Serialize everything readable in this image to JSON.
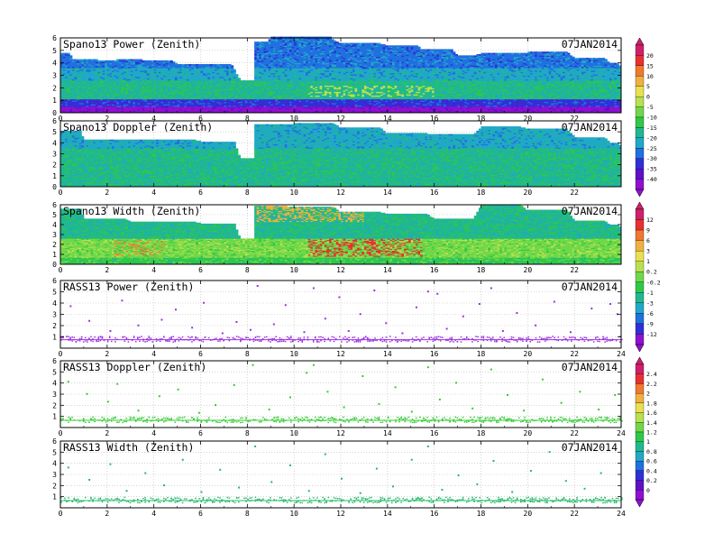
{
  "chart_data": [
    {
      "type": "heatmap",
      "title": "Spano13 Power (Zenith)",
      "date": "07JAN2014",
      "xlim": [
        0,
        24
      ],
      "ylim": [
        0,
        6
      ],
      "x_ticks": [
        "0",
        "2",
        "4",
        "6",
        "8",
        "10",
        "12",
        "14",
        "16",
        "18",
        "20",
        "22"
      ],
      "y_ticks": [
        "0",
        "1",
        "2",
        "3",
        "4",
        "5",
        "6"
      ],
      "grid": true,
      "colorbar": "A",
      "top_profile": [
        [
          0,
          4.7
        ],
        [
          0.5,
          4.3
        ],
        [
          1.6,
          4.2
        ],
        [
          2.5,
          4.3
        ],
        [
          3.5,
          4.2
        ],
        [
          5,
          3.9
        ],
        [
          7.7,
          2.6
        ],
        [
          8.1,
          2.6
        ],
        [
          8.3,
          5.6
        ],
        [
          9,
          6.0
        ],
        [
          12,
          5.5
        ],
        [
          14,
          5.3
        ],
        [
          15.5,
          5.0
        ],
        [
          17,
          4.6
        ],
        [
          18,
          4.7
        ],
        [
          20,
          4.8
        ],
        [
          22,
          4.4
        ],
        [
          23.5,
          4.0
        ],
        [
          24,
          3.2
        ]
      ],
      "layers": [
        {
          "y0": 0.0,
          "y1": 0.5,
          "level": 0
        },
        {
          "y0": 0.5,
          "y1": 1.0,
          "level": 2
        },
        {
          "y0": 1.0,
          "y1": 2.6,
          "level": 5
        },
        {
          "y0": 2.6,
          "y1": 3.6,
          "level": 4
        },
        {
          "y0": 3.6,
          "y1": 6.0,
          "level": 3
        }
      ]
    },
    {
      "type": "heatmap",
      "title": "Spano13 Doppler (Zenith)",
      "date": "07JAN2014",
      "xlim": [
        0,
        24
      ],
      "ylim": [
        0,
        6
      ],
      "x_ticks": [
        "0",
        "2",
        "4",
        "6",
        "8",
        "10",
        "12",
        "14",
        "16",
        "18",
        "20",
        "22"
      ],
      "y_ticks": [
        "0",
        "1",
        "2",
        "3",
        "4",
        "5",
        "6"
      ],
      "grid": true,
      "colorbar": "A",
      "top_profile": [
        [
          0,
          5.0
        ],
        [
          1,
          4.3
        ],
        [
          3,
          4.3
        ],
        [
          6,
          4.1
        ],
        [
          7.7,
          2.6
        ],
        [
          8.1,
          2.6
        ],
        [
          8.3,
          5.6
        ],
        [
          10,
          5.7
        ],
        [
          12,
          5.3
        ],
        [
          14,
          4.8
        ],
        [
          16,
          4.7
        ],
        [
          18,
          5.4
        ],
        [
          20,
          5.2
        ],
        [
          22,
          4.5
        ],
        [
          23.5,
          4.0
        ],
        [
          24,
          3.2
        ]
      ],
      "layers": [
        {
          "y0": 0.0,
          "y1": 1.5,
          "level": 5
        },
        {
          "y0": 1.5,
          "y1": 3.5,
          "level": 5
        },
        {
          "y0": 3.5,
          "y1": 6.0,
          "level": 4
        }
      ]
    },
    {
      "type": "heatmap",
      "title": "Spano13 Width (Zenith)",
      "date": "07JAN2014",
      "xlim": [
        0,
        24
      ],
      "ylim": [
        0,
        6
      ],
      "x_ticks": [
        "0",
        "2",
        "4",
        "6",
        "8",
        "10",
        "12",
        "14",
        "16",
        "18",
        "20",
        "22"
      ],
      "y_ticks": [
        "0",
        "1",
        "2",
        "3",
        "4",
        "5",
        "6"
      ],
      "grid": true,
      "colorbar": "B",
      "top_profile": [
        [
          0,
          5.5
        ],
        [
          1,
          4.6
        ],
        [
          3,
          4.3
        ],
        [
          6,
          4.1
        ],
        [
          7.7,
          2.6
        ],
        [
          8.1,
          2.6
        ],
        [
          8.3,
          5.8
        ],
        [
          10,
          5.7
        ],
        [
          12,
          5.2
        ],
        [
          14,
          5.0
        ],
        [
          16,
          4.6
        ],
        [
          18,
          5.9
        ],
        [
          20,
          5.4
        ],
        [
          22,
          4.4
        ],
        [
          23.5,
          4.0
        ],
        [
          24,
          3.2
        ]
      ],
      "layers": [
        {
          "y0": 0.0,
          "y1": 0.7,
          "level": 5
        },
        {
          "y0": 0.7,
          "y1": 2.6,
          "level": 6
        },
        {
          "y0": 2.6,
          "y1": 6.0,
          "level": 4
        }
      ]
    },
    {
      "type": "scatter",
      "title": "RASS13 Power (Zenith)",
      "date": "07JAN2014",
      "xlim": [
        0,
        24
      ],
      "ylim": [
        0,
        6
      ],
      "x_ticks": [
        "0",
        "2",
        "4",
        "6",
        "8",
        "10",
        "12",
        "14",
        "16",
        "18",
        "20",
        "22",
        "24"
      ],
      "y_ticks": [
        "1",
        "2",
        "3",
        "4",
        "5",
        "6"
      ],
      "grid": true,
      "colorbar": "B",
      "band": {
        "y0": 0.6,
        "y1": 1.1,
        "color": "#9b30e0"
      },
      "points": [
        [
          0.4,
          3.8
        ],
        [
          1.2,
          2.5
        ],
        [
          2.1,
          1.6
        ],
        [
          2.6,
          4.3
        ],
        [
          3.3,
          2.1
        ],
        [
          4.3,
          2.6
        ],
        [
          4.9,
          3.5
        ],
        [
          5.6,
          1.9
        ],
        [
          6.1,
          4.1
        ],
        [
          6.9,
          1.4
        ],
        [
          7.5,
          2.4
        ],
        [
          8.1,
          1.7
        ],
        [
          8.4,
          5.6
        ],
        [
          9.1,
          2.2
        ],
        [
          9.6,
          3.9
        ],
        [
          10.4,
          1.5
        ],
        [
          10.8,
          5.4
        ],
        [
          11.3,
          2.7
        ],
        [
          11.9,
          4.6
        ],
        [
          12.3,
          1.6
        ],
        [
          12.8,
          3.1
        ],
        [
          13.4,
          5.2
        ],
        [
          13.9,
          2.3
        ],
        [
          14.6,
          1.4
        ],
        [
          15.2,
          3.7
        ],
        [
          15.7,
          5.1
        ],
        [
          16.1,
          4.9
        ],
        [
          16.5,
          1.8
        ],
        [
          17.2,
          2.9
        ],
        [
          17.9,
          4.0
        ],
        [
          18.4,
          5.4
        ],
        [
          18.9,
          1.6
        ],
        [
          19.5,
          3.2
        ],
        [
          20.3,
          2.1
        ],
        [
          21.1,
          4.2
        ],
        [
          21.8,
          1.5
        ],
        [
          22.7,
          3.6
        ],
        [
          23.5,
          4.0
        ],
        [
          23.8,
          3.1
        ]
      ],
      "point_color": "#9b30e0"
    },
    {
      "type": "scatter",
      "title": "RASS13 Doppler (Zenith)",
      "date": "07JAN2014",
      "xlim": [
        0,
        24
      ],
      "ylim": [
        0,
        6
      ],
      "x_ticks": [
        "0",
        "2",
        "4",
        "6",
        "8",
        "10",
        "12",
        "14",
        "16",
        "18",
        "20",
        "22",
        "24"
      ],
      "y_ticks": [
        "1",
        "2",
        "3",
        "4",
        "5",
        "6"
      ],
      "grid": true,
      "colorbar": "C",
      "band": {
        "y0": 0.5,
        "y1": 1.0,
        "color": "#33cc33"
      },
      "points": [
        [
          0.3,
          4.2
        ],
        [
          1.1,
          3.1
        ],
        [
          2.0,
          2.4
        ],
        [
          2.4,
          4.0
        ],
        [
          3.3,
          1.6
        ],
        [
          4.2,
          2.9
        ],
        [
          5.0,
          3.5
        ],
        [
          5.9,
          1.4
        ],
        [
          6.6,
          2.1
        ],
        [
          7.4,
          3.9
        ],
        [
          8.2,
          5.7
        ],
        [
          8.9,
          1.7
        ],
        [
          9.8,
          2.8
        ],
        [
          10.5,
          5.0
        ],
        [
          10.8,
          5.7
        ],
        [
          11.4,
          3.3
        ],
        [
          12.1,
          1.9
        ],
        [
          12.9,
          4.7
        ],
        [
          13.6,
          2.2
        ],
        [
          14.3,
          3.7
        ],
        [
          15.0,
          1.5
        ],
        [
          15.7,
          5.5
        ],
        [
          16.2,
          2.6
        ],
        [
          16.9,
          4.1
        ],
        [
          17.6,
          1.8
        ],
        [
          18.4,
          5.3
        ],
        [
          19.1,
          3.0
        ],
        [
          19.8,
          1.6
        ],
        [
          20.6,
          4.4
        ],
        [
          21.4,
          2.3
        ],
        [
          22.2,
          3.3
        ],
        [
          23.0,
          1.7
        ],
        [
          23.7,
          3.0
        ]
      ],
      "point_color": "#33cc33"
    },
    {
      "type": "scatter",
      "title": "RASS13 Width (Zenith)",
      "date": "07JAN2014",
      "xlim": [
        0,
        24
      ],
      "ylim": [
        0,
        6
      ],
      "x_ticks": [
        "0",
        "2",
        "4",
        "6",
        "8",
        "10",
        "12",
        "14",
        "16",
        "18",
        "20",
        "22",
        "24"
      ],
      "y_ticks": [
        "1",
        "2",
        "3",
        "4",
        "5",
        "6"
      ],
      "grid": true,
      "colorbar": "C",
      "band": {
        "y0": 0.5,
        "y1": 1.0,
        "color": "#22bb66"
      },
      "points": [
        [
          0.3,
          3.7
        ],
        [
          1.2,
          2.6
        ],
        [
          2.1,
          4.0
        ],
        [
          2.8,
          1.6
        ],
        [
          3.6,
          3.2
        ],
        [
          4.4,
          2.1
        ],
        [
          5.2,
          4.4
        ],
        [
          6.0,
          1.5
        ],
        [
          6.8,
          3.5
        ],
        [
          7.6,
          1.9
        ],
        [
          8.3,
          5.6
        ],
        [
          9.0,
          2.4
        ],
        [
          9.8,
          3.9
        ],
        [
          10.6,
          1.6
        ],
        [
          11.3,
          4.9
        ],
        [
          12.0,
          2.7
        ],
        [
          12.8,
          1.4
        ],
        [
          13.5,
          3.6
        ],
        [
          14.2,
          2.0
        ],
        [
          15.0,
          4.4
        ],
        [
          15.7,
          5.6
        ],
        [
          16.3,
          1.7
        ],
        [
          17.0,
          3.0
        ],
        [
          17.8,
          2.2
        ],
        [
          18.5,
          4.3
        ],
        [
          19.3,
          1.5
        ],
        [
          20.1,
          3.4
        ],
        [
          20.9,
          5.1
        ],
        [
          21.6,
          2.5
        ],
        [
          22.4,
          1.8
        ],
        [
          23.1,
          3.2
        ]
      ],
      "point_color": "#22bb66"
    }
  ],
  "colorbars": {
    "A": {
      "labels": [
        "20",
        "15",
        "10",
        "5",
        "0",
        "-5",
        "-10",
        "-15",
        "-20",
        "-25",
        "-30",
        "-35",
        "-40"
      ],
      "colors": [
        "#d0206a",
        "#e83030",
        "#f07830",
        "#f0b040",
        "#e8e050",
        "#b8e050",
        "#70d848",
        "#30c848",
        "#20b890",
        "#20a8c8",
        "#2070e0",
        "#3030d8",
        "#6010c8",
        "#9010d0"
      ]
    },
    "B": {
      "labels": [
        "12",
        "9",
        "6",
        "3",
        "1",
        "0.2",
        "-0.2",
        "-1",
        "-3",
        "-6",
        "-9",
        "-12"
      ],
      "colors": [
        "#d0206a",
        "#e83030",
        "#f07830",
        "#f0b040",
        "#e8e050",
        "#b8e050",
        "#70d848",
        "#30c848",
        "#20b890",
        "#20a8c8",
        "#2070e0",
        "#3030d8",
        "#9010d0"
      ]
    },
    "C": {
      "labels": [
        "2.4",
        "2.2",
        "2",
        "1.8",
        "1.6",
        "1.4",
        "1.2",
        "1",
        "0.8",
        "0.6",
        "0.4",
        "0.2",
        "0"
      ],
      "colors": [
        "#d0206a",
        "#e83030",
        "#f07830",
        "#f0b040",
        "#e8e050",
        "#b8e050",
        "#70d848",
        "#30c848",
        "#20b890",
        "#20a8c8",
        "#2070e0",
        "#3030d8",
        "#6010c8",
        "#9010d0"
      ]
    }
  }
}
